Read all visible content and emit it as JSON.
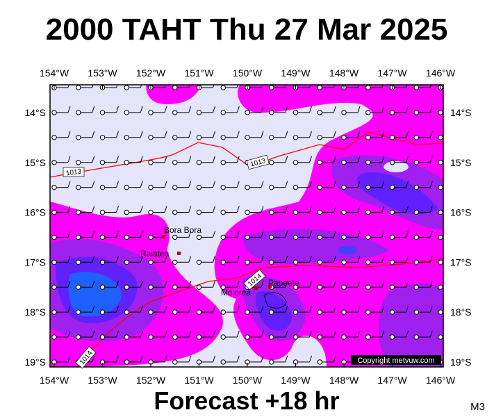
{
  "header": {
    "title": "2000 TAHT Thu 27 Mar 2025"
  },
  "map": {
    "lon_labels": [
      "154°W",
      "153°W",
      "152°W",
      "151°W",
      "150°W",
      "149°W",
      "148°W",
      "147°W",
      "146°W"
    ],
    "lat_labels": [
      "14°S",
      "15°S",
      "16°S",
      "17°S",
      "18°S",
      "19°S"
    ],
    "places": [
      "Bora Bora",
      "Raiatea",
      "Mo'orea",
      "Papeete"
    ],
    "isobar_labels": [
      "1013",
      "1013",
      "1014",
      "1014"
    ],
    "copyright": "Copyright metvuw.com"
  },
  "footer": {
    "forecast": "Forecast +18 hr",
    "model": "M3"
  }
}
